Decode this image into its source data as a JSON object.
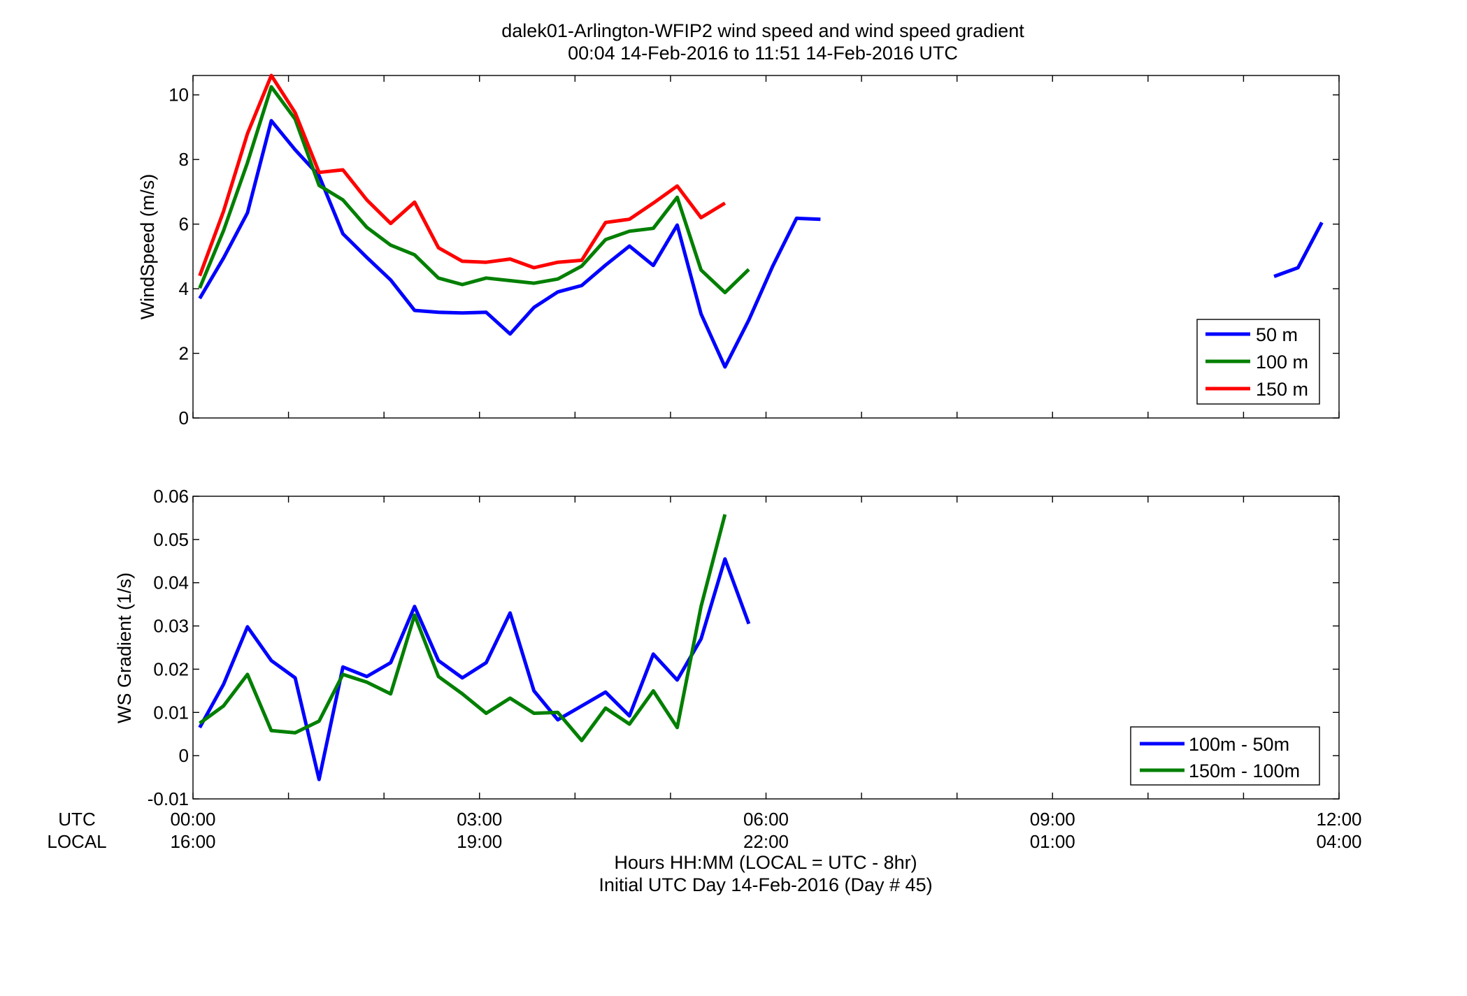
{
  "title_line1": "dalek01-Arlington-WFIP2  wind speed and wind speed gradient",
  "title_line2": "00:04 14-Feb-2016 to 11:51 14-Feb-2016  UTC",
  "row_labels": {
    "utc": "UTC",
    "local": "LOCAL"
  },
  "xlabel_line1": "Hours HH:MM  (LOCAL = UTC - 8hr)",
  "xlabel_line2": "Initial UTC Day 14-Feb-2016 (Day # 45)",
  "chart_data": [
    {
      "type": "line",
      "ylabel": "WindSpeed (m/s)",
      "ylim": [
        0,
        10.6
      ],
      "xlim": [
        0,
        12
      ],
      "yticks": [
        0,
        2,
        4,
        6,
        8,
        10
      ],
      "ytick_labels": [
        "0",
        "2",
        "4",
        "6",
        "8",
        "10"
      ],
      "legend_position": "bottom-right",
      "series": [
        {
          "name": "50 m",
          "color": "#0000ff",
          "segments": [
            [
              [
                0.07,
                3.7
              ],
              [
                0.32,
                4.95
              ],
              [
                0.57,
                6.35
              ],
              [
                0.82,
                9.2
              ],
              [
                1.07,
                8.3
              ],
              [
                1.32,
                7.5
              ],
              [
                1.57,
                5.7
              ],
              [
                1.82,
                4.97
              ],
              [
                2.07,
                4.27
              ],
              [
                2.32,
                3.33
              ],
              [
                2.57,
                3.27
              ],
              [
                2.82,
                3.25
              ],
              [
                3.07,
                3.27
              ],
              [
                3.32,
                2.6
              ],
              [
                3.57,
                3.42
              ],
              [
                3.82,
                3.9
              ],
              [
                4.07,
                4.1
              ],
              [
                4.32,
                4.73
              ],
              [
                4.57,
                5.32
              ],
              [
                4.82,
                4.72
              ],
              [
                5.07,
                5.97
              ],
              [
                5.32,
                3.22
              ],
              [
                5.57,
                1.58
              ],
              [
                5.82,
                3.03
              ],
              [
                6.07,
                4.7
              ],
              [
                6.32,
                6.18
              ],
              [
                6.57,
                6.15
              ]
            ],
            [
              [
                11.32,
                4.38
              ],
              [
                11.57,
                4.65
              ],
              [
                11.82,
                6.05
              ]
            ]
          ]
        },
        {
          "name": "100 m",
          "color": "#007f00",
          "segments": [
            [
              [
                0.07,
                4.02
              ],
              [
                0.32,
                5.8
              ],
              [
                0.57,
                7.9
              ],
              [
                0.82,
                10.25
              ],
              [
                1.07,
                9.25
              ],
              [
                1.32,
                7.2
              ],
              [
                1.57,
                6.75
              ],
              [
                1.82,
                5.9
              ],
              [
                2.07,
                5.35
              ],
              [
                2.32,
                5.05
              ],
              [
                2.57,
                4.33
              ],
              [
                2.82,
                4.13
              ],
              [
                3.07,
                4.33
              ],
              [
                3.32,
                4.25
              ],
              [
                3.57,
                4.17
              ],
              [
                3.82,
                4.3
              ],
              [
                4.07,
                4.7
              ],
              [
                4.32,
                5.52
              ],
              [
                4.57,
                5.78
              ],
              [
                4.82,
                5.87
              ],
              [
                5.07,
                6.83
              ],
              [
                5.32,
                4.58
              ],
              [
                5.57,
                3.88
              ],
              [
                5.82,
                4.6
              ]
            ]
          ]
        },
        {
          "name": "150 m",
          "color": "#ff0000",
          "segments": [
            [
              [
                0.07,
                4.4
              ],
              [
                0.32,
                6.4
              ],
              [
                0.57,
                8.8
              ],
              [
                0.82,
                10.6
              ],
              [
                1.07,
                9.45
              ],
              [
                1.32,
                7.6
              ],
              [
                1.57,
                7.68
              ],
              [
                1.82,
                6.75
              ],
              [
                2.07,
                6.02
              ],
              [
                2.32,
                6.68
              ],
              [
                2.57,
                5.27
              ],
              [
                2.82,
                4.85
              ],
              [
                3.07,
                4.82
              ],
              [
                3.32,
                4.92
              ],
              [
                3.57,
                4.65
              ],
              [
                3.82,
                4.82
              ],
              [
                4.07,
                4.88
              ],
              [
                4.32,
                6.05
              ],
              [
                4.57,
                6.15
              ],
              [
                4.82,
                6.65
              ],
              [
                5.07,
                7.18
              ],
              [
                5.32,
                6.2
              ],
              [
                5.57,
                6.65
              ]
            ]
          ]
        }
      ]
    },
    {
      "type": "line",
      "ylabel": "WS Gradient (1/s)",
      "ylim": [
        -0.01,
        0.06
      ],
      "xlim": [
        0,
        12
      ],
      "yticks": [
        -0.01,
        0,
        0.01,
        0.02,
        0.03,
        0.04,
        0.05,
        0.06
      ],
      "ytick_labels": [
        "-0.01",
        "0",
        "0.01",
        "0.02",
        "0.03",
        "0.04",
        "0.05",
        "0.06"
      ],
      "legend_position": "bottom-right",
      "series": [
        {
          "name": "100m - 50m",
          "color": "#0000ff",
          "segments": [
            [
              [
                0.07,
                0.0065
              ],
              [
                0.32,
                0.0165
              ],
              [
                0.57,
                0.0298
              ],
              [
                0.82,
                0.022
              ],
              [
                1.07,
                0.018
              ],
              [
                1.32,
                -0.0055
              ],
              [
                1.57,
                0.0205
              ],
              [
                1.82,
                0.0183
              ],
              [
                2.07,
                0.0215
              ],
              [
                2.32,
                0.0345
              ],
              [
                2.57,
                0.022
              ],
              [
                2.82,
                0.018
              ],
              [
                3.07,
                0.0215
              ],
              [
                3.32,
                0.033
              ],
              [
                3.57,
                0.015
              ],
              [
                3.82,
                0.0083
              ],
              [
                4.07,
                0.0115
              ],
              [
                4.32,
                0.0147
              ],
              [
                4.57,
                0.0092
              ],
              [
                4.82,
                0.0235
              ],
              [
                5.07,
                0.0175
              ],
              [
                5.32,
                0.027
              ],
              [
                5.57,
                0.0455
              ],
              [
                5.82,
                0.0305
              ]
            ]
          ]
        },
        {
          "name": "150m - 100m",
          "color": "#007f00",
          "segments": [
            [
              [
                0.07,
                0.0075
              ],
              [
                0.32,
                0.0115
              ],
              [
                0.57,
                0.0188
              ],
              [
                0.82,
                0.0058
              ],
              [
                1.07,
                0.0053
              ],
              [
                1.32,
                0.008
              ],
              [
                1.57,
                0.0188
              ],
              [
                1.82,
                0.017
              ],
              [
                2.07,
                0.0143
              ],
              [
                2.32,
                0.0325
              ],
              [
                2.57,
                0.0183
              ],
              [
                2.82,
                0.0143
              ],
              [
                3.07,
                0.0098
              ],
              [
                3.32,
                0.0133
              ],
              [
                3.57,
                0.0098
              ],
              [
                3.82,
                0.01
              ],
              [
                4.07,
                0.0035
              ],
              [
                4.32,
                0.011
              ],
              [
                4.57,
                0.0073
              ],
              [
                4.82,
                0.015
              ],
              [
                5.07,
                0.0065
              ],
              [
                5.32,
                0.0345
              ],
              [
                5.57,
                0.0558
              ]
            ]
          ]
        }
      ]
    }
  ],
  "x_ticks": [
    {
      "h": 0,
      "utc": "00:00",
      "local": "16:00"
    },
    {
      "h": 3,
      "utc": "03:00",
      "local": "19:00"
    },
    {
      "h": 6,
      "utc": "06:00",
      "local": "22:00"
    },
    {
      "h": 9,
      "utc": "09:00",
      "local": "01:00"
    },
    {
      "h": 12,
      "utc": "12:00",
      "local": "04:00"
    }
  ]
}
